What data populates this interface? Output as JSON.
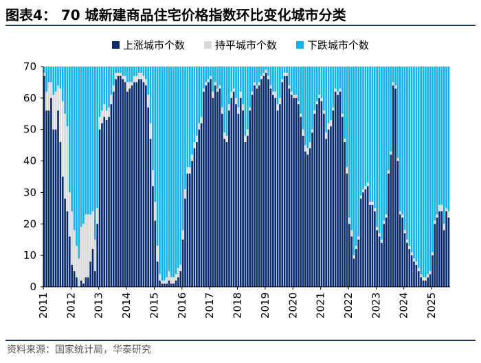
{
  "title": "图表4： 70 城新建商品住宅价格指数环比变化城市分类",
  "source": "资料来源：国家统计局，华泰研究",
  "colors": {
    "up": "#0b2c6e",
    "flat": "#d9d9d9",
    "down": "#12b2ec",
    "rule": "#17375e"
  },
  "chart_data": {
    "type": "bar",
    "stacked": true,
    "title": "70 城新建商品住宅价格指数环比变化城市分类",
    "ylim": [
      0,
      70
    ],
    "yticks": [
      0,
      10,
      20,
      30,
      40,
      50,
      60,
      70
    ],
    "xticks": [
      "2011",
      "2012",
      "2013",
      "2014",
      "2015",
      "2016",
      "2017",
      "2018",
      "2019",
      "2020",
      "2021",
      "2022",
      "2023",
      "2024",
      "2025"
    ],
    "legend_position": "top",
    "series": [
      {
        "name": "上涨城市个数",
        "color": "#0b2c6e"
      },
      {
        "name": "持平城市个数",
        "color": "#d9d9d9"
      },
      {
        "name": "下跌城市个数",
        "color": "#12b2ec"
      }
    ],
    "start": "2011-01",
    "up": [
      67,
      56,
      56,
      60,
      50,
      50,
      56,
      46,
      35,
      28,
      24,
      16,
      7,
      5,
      3,
      0,
      2,
      1,
      3,
      3,
      8,
      12,
      5,
      20,
      50,
      52,
      54,
      53,
      54,
      58,
      62,
      66,
      67,
      67,
      66,
      65,
      62,
      63,
      64,
      65,
      65,
      66,
      66,
      65,
      64,
      57,
      47,
      32,
      21,
      8,
      2,
      1,
      1,
      1,
      2,
      1,
      1,
      2,
      3,
      5,
      15,
      28,
      36,
      36,
      40,
      44,
      46,
      50,
      52,
      62,
      64,
      65,
      66,
      60,
      64,
      62,
      63,
      55,
      47,
      46,
      56,
      60,
      62,
      58,
      55,
      60,
      56,
      46,
      48,
      56,
      61,
      64,
      63,
      64,
      66,
      67,
      68,
      66,
      63,
      61,
      60,
      56,
      58,
      65,
      67,
      67,
      63,
      61,
      60,
      60,
      58,
      54,
      48,
      43,
      42,
      44,
      49,
      55,
      58,
      60,
      59,
      55,
      47,
      50,
      51,
      56,
      62,
      61,
      62,
      54,
      46,
      36,
      20,
      16,
      9,
      12,
      15,
      28,
      30,
      31,
      32,
      26,
      26,
      24,
      18,
      16,
      14,
      20,
      22,
      36,
      42,
      64,
      63,
      40,
      23,
      22,
      17,
      14,
      12,
      10,
      8,
      7,
      5,
      3,
      2,
      2,
      3,
      4,
      10,
      20,
      22,
      24,
      24,
      18,
      24,
      22
    ],
    "flat": [
      1,
      6,
      9,
      5,
      11,
      12,
      8,
      17,
      24,
      27,
      27,
      14,
      17,
      13,
      10,
      9,
      17,
      19,
      20,
      20,
      15,
      12,
      10,
      5,
      4,
      4,
      4,
      3,
      3,
      3,
      2,
      2,
      1,
      1,
      1,
      2,
      3,
      2,
      1,
      2,
      2,
      2,
      2,
      2,
      2,
      4,
      5,
      5,
      6,
      5,
      2,
      1,
      1,
      2,
      3,
      2,
      2,
      2,
      3,
      2,
      3,
      3,
      2,
      2,
      2,
      2,
      2,
      2,
      2,
      1,
      1,
      1,
      1,
      2,
      1,
      1,
      1,
      2,
      2,
      2,
      2,
      2,
      1,
      2,
      2,
      2,
      2,
      2,
      2,
      1,
      1,
      1,
      1,
      1,
      1,
      1,
      1,
      1,
      1,
      1,
      2,
      2,
      2,
      1,
      1,
      1,
      1,
      1,
      1,
      1,
      1,
      1,
      2,
      2,
      2,
      2,
      1,
      1,
      1,
      1,
      1,
      1,
      2,
      2,
      2,
      1,
      1,
      1,
      1,
      1,
      1,
      2,
      2,
      2,
      1,
      1,
      1,
      1,
      1,
      1,
      1,
      1,
      1,
      1,
      1,
      1,
      1,
      1,
      1,
      1,
      1,
      1,
      1,
      1,
      1,
      1,
      1,
      1,
      1,
      1,
      1,
      1,
      1,
      1,
      1,
      1,
      1,
      1,
      1,
      1,
      1,
      2,
      2,
      2,
      1,
      2
    ]
  }
}
